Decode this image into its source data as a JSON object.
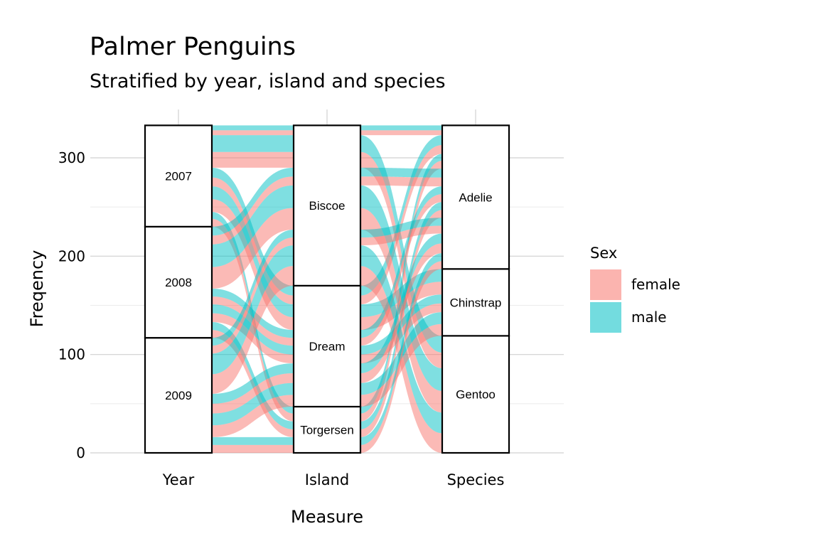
{
  "chart_data": {
    "type": "alluvial",
    "title": "Palmer Penguins",
    "subtitle": "Stratified by year, island and species",
    "xlabel": "Measure",
    "ylabel": "Freqency",
    "ylim": [
      0,
      333
    ],
    "yticks": [
      0,
      100,
      200,
      300
    ],
    "grid": true,
    "axes": [
      "Year",
      "Island",
      "Species"
    ],
    "strata": {
      "Year": [
        {
          "label": "2009",
          "count": 117
        },
        {
          "label": "2008",
          "count": 113
        },
        {
          "label": "2007",
          "count": 103
        }
      ],
      "Island": [
        {
          "label": "Torgersen",
          "count": 47
        },
        {
          "label": "Dream",
          "count": 123
        },
        {
          "label": "Biscoe",
          "count": 163
        }
      ],
      "Species": [
        {
          "label": "Gentoo",
          "count": 119
        },
        {
          "label": "Chinstrap",
          "count": 68
        },
        {
          "label": "Adelie",
          "count": 146
        }
      ]
    },
    "legend": {
      "title": "Sex",
      "position": "right",
      "entries": [
        {
          "label": "female",
          "color": "#F8766D"
        },
        {
          "label": "male",
          "color": "#00BFC4"
        }
      ]
    },
    "flows": [
      {
        "year": "2007",
        "island": "Biscoe",
        "species": "Gentoo",
        "sex": "female",
        "count": 16
      },
      {
        "year": "2007",
        "island": "Biscoe",
        "species": "Gentoo",
        "sex": "male",
        "count": 17
      },
      {
        "year": "2007",
        "island": "Biscoe",
        "species": "Adelie",
        "sex": "female",
        "count": 5
      },
      {
        "year": "2007",
        "island": "Biscoe",
        "species": "Adelie",
        "sex": "male",
        "count": 5
      },
      {
        "year": "2007",
        "island": "Dream",
        "species": "Adelie",
        "sex": "female",
        "count": 9
      },
      {
        "year": "2007",
        "island": "Dream",
        "species": "Adelie",
        "sex": "male",
        "count": 10
      },
      {
        "year": "2007",
        "island": "Dream",
        "species": "Chinstrap",
        "sex": "female",
        "count": 13
      },
      {
        "year": "2007",
        "island": "Dream",
        "species": "Chinstrap",
        "sex": "male",
        "count": 13
      },
      {
        "year": "2007",
        "island": "Torgersen",
        "species": "Adelie",
        "sex": "female",
        "count": 8
      },
      {
        "year": "2007",
        "island": "Torgersen",
        "species": "Adelie",
        "sex": "male",
        "count": 7
      },
      {
        "year": "2008",
        "island": "Biscoe",
        "species": "Gentoo",
        "sex": "female",
        "count": 22
      },
      {
        "year": "2008",
        "island": "Biscoe",
        "species": "Gentoo",
        "sex": "male",
        "count": 23
      },
      {
        "year": "2008",
        "island": "Biscoe",
        "species": "Adelie",
        "sex": "female",
        "count": 9
      },
      {
        "year": "2008",
        "island": "Biscoe",
        "species": "Adelie",
        "sex": "male",
        "count": 9
      },
      {
        "year": "2008",
        "island": "Dream",
        "species": "Adelie",
        "sex": "female",
        "count": 8
      },
      {
        "year": "2008",
        "island": "Dream",
        "species": "Adelie",
        "sex": "male",
        "count": 8
      },
      {
        "year": "2008",
        "island": "Dream",
        "species": "Chinstrap",
        "sex": "female",
        "count": 9
      },
      {
        "year": "2008",
        "island": "Dream",
        "species": "Chinstrap",
        "sex": "male",
        "count": 9
      },
      {
        "year": "2008",
        "island": "Torgersen",
        "species": "Adelie",
        "sex": "female",
        "count": 8
      },
      {
        "year": "2008",
        "island": "Torgersen",
        "species": "Adelie",
        "sex": "male",
        "count": 8
      },
      {
        "year": "2009",
        "island": "Biscoe",
        "species": "Gentoo",
        "sex": "female",
        "count": 20
      },
      {
        "year": "2009",
        "island": "Biscoe",
        "species": "Gentoo",
        "sex": "male",
        "count": 21
      },
      {
        "year": "2009",
        "island": "Biscoe",
        "species": "Adelie",
        "sex": "female",
        "count": 8
      },
      {
        "year": "2009",
        "island": "Biscoe",
        "species": "Adelie",
        "sex": "male",
        "count": 8
      },
      {
        "year": "2009",
        "island": "Dream",
        "species": "Adelie",
        "sex": "female",
        "count": 10
      },
      {
        "year": "2009",
        "island": "Dream",
        "species": "Adelie",
        "sex": "male",
        "count": 10
      },
      {
        "year": "2009",
        "island": "Dream",
        "species": "Chinstrap",
        "sex": "female",
        "count": 12
      },
      {
        "year": "2009",
        "island": "Dream",
        "species": "Chinstrap",
        "sex": "male",
        "count": 12
      },
      {
        "year": "2009",
        "island": "Torgersen",
        "species": "Adelie",
        "sex": "female",
        "count": 8
      },
      {
        "year": "2009",
        "island": "Torgersen",
        "species": "Adelie",
        "sex": "male",
        "count": 8
      }
    ]
  }
}
